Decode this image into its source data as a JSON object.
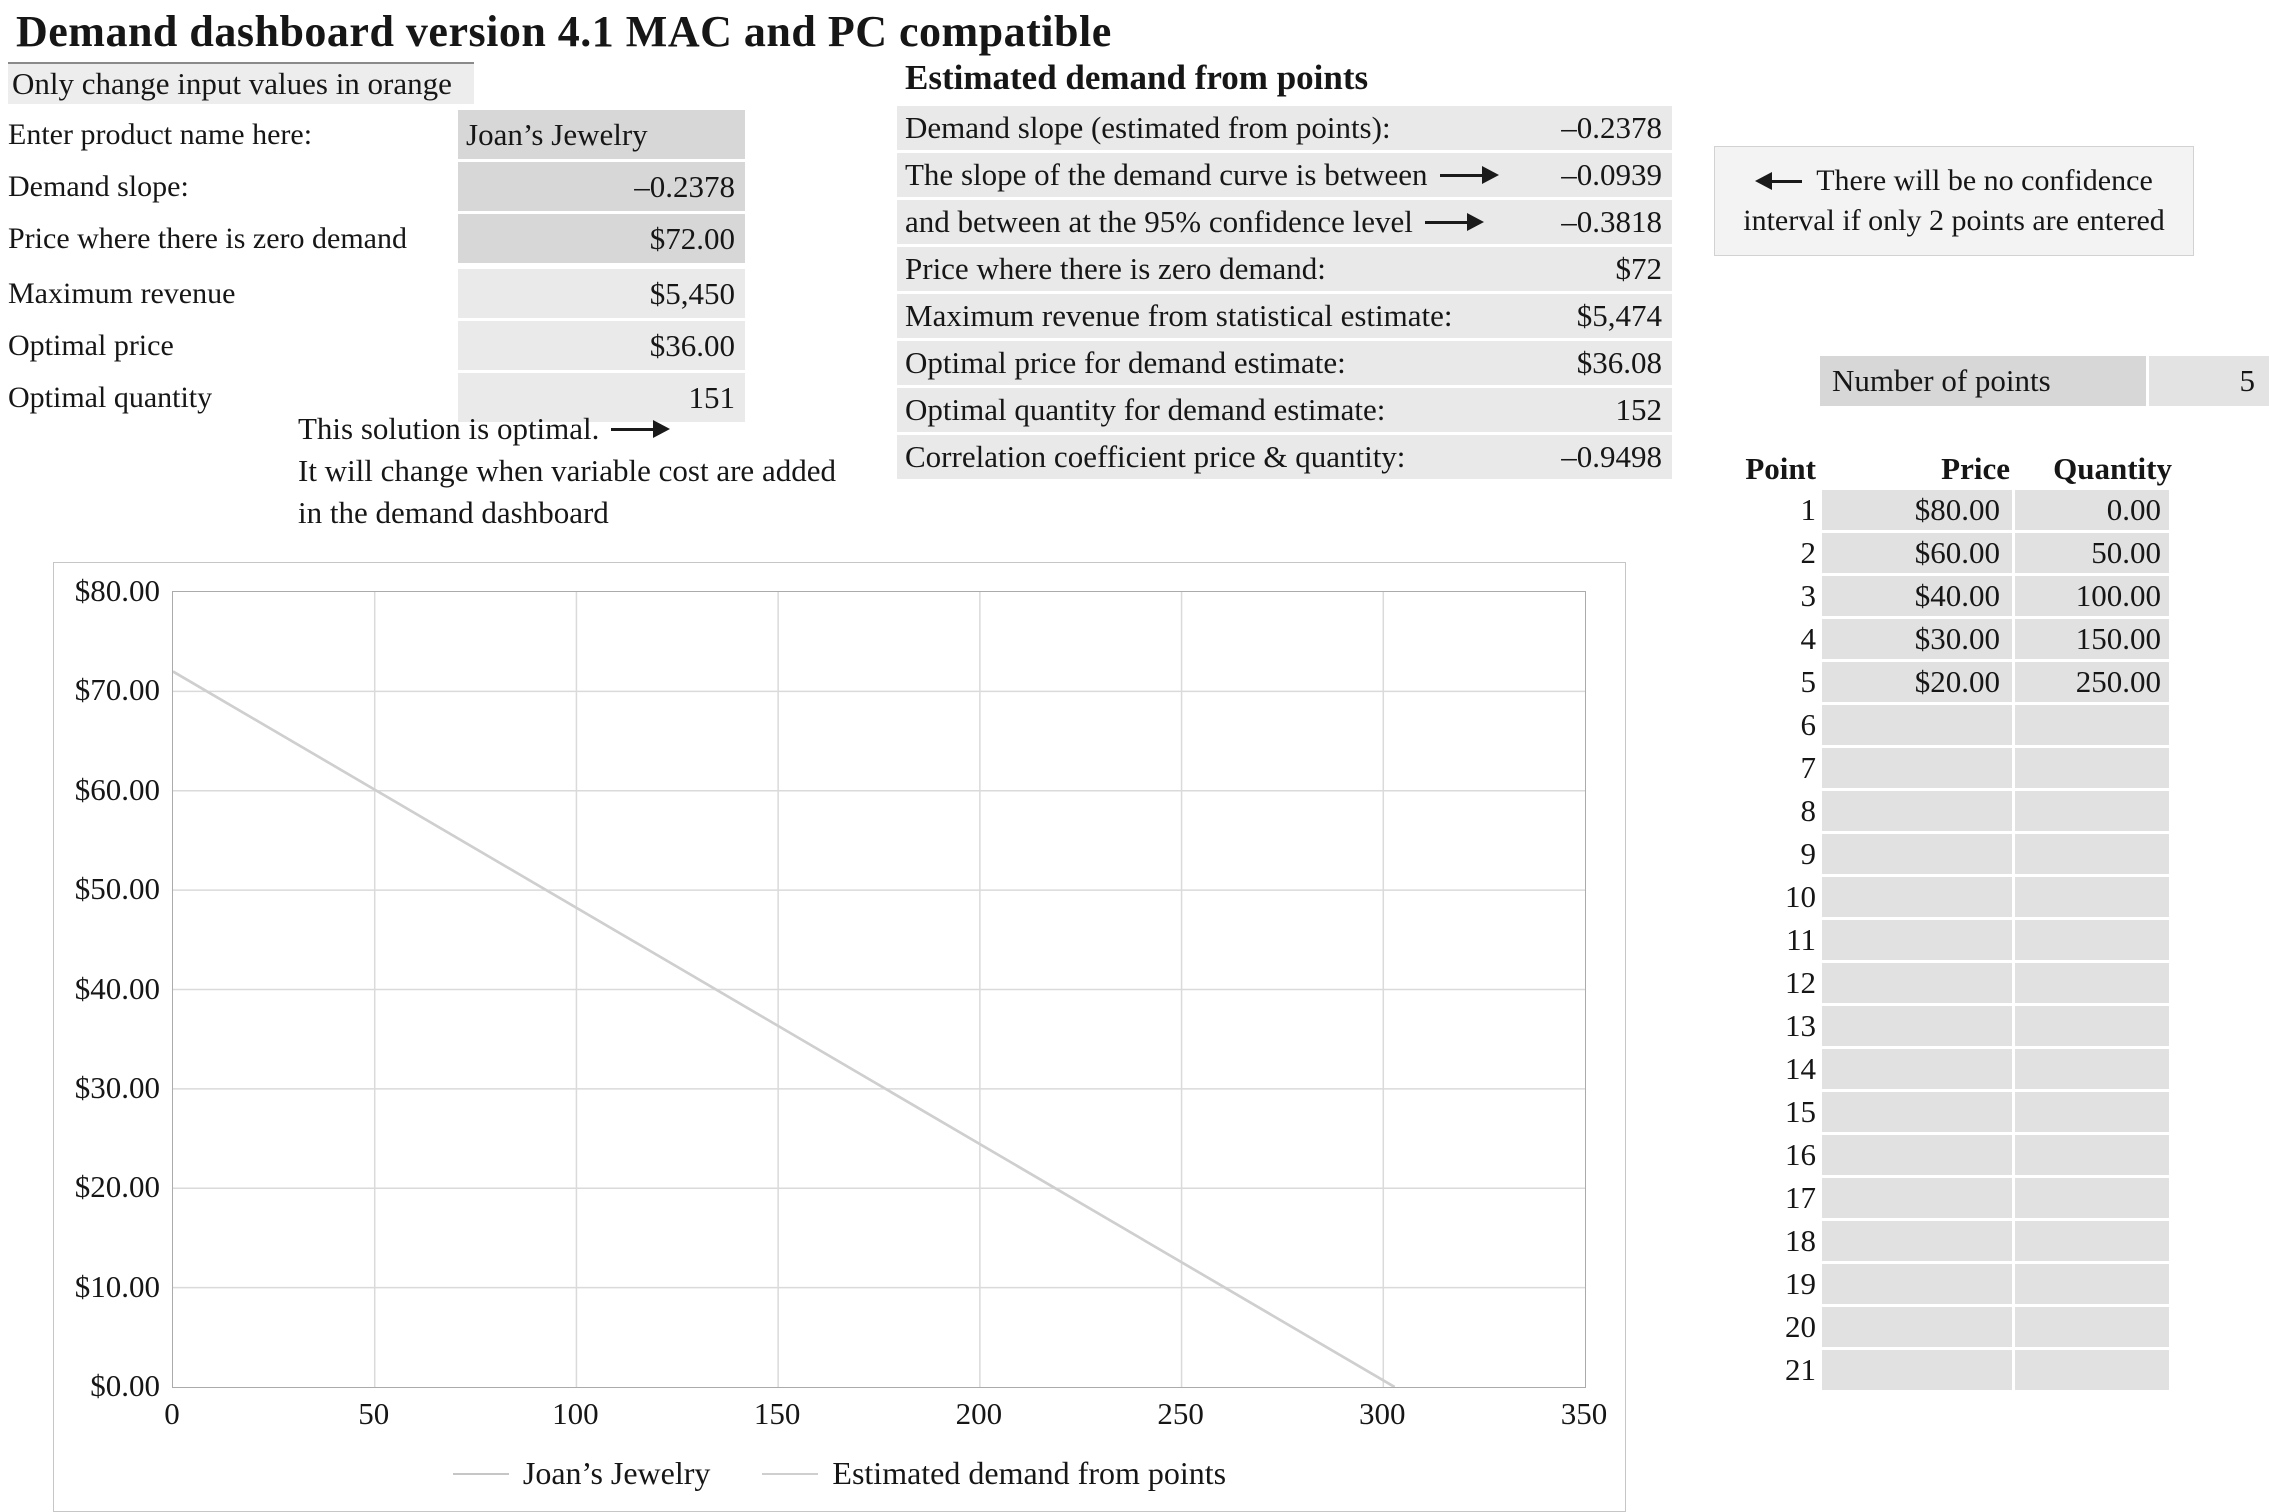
{
  "title": "Demand dashboard version 4.1 MAC and PC compatible",
  "inputs": {
    "note": "Only change input values in orange",
    "rows": [
      {
        "label": "Enter product name here:",
        "value": "Joan’s Jewelry",
        "align": "left",
        "editable": true
      },
      {
        "label": "Demand slope:",
        "value": "–0.2378",
        "align": "right",
        "editable": true
      },
      {
        "label": "Price where there is zero demand",
        "value": "$72.00",
        "align": "right",
        "editable": true
      },
      {
        "label": "Maximum revenue",
        "value": "$5,450",
        "align": "right",
        "editable": false
      },
      {
        "label": "Optimal price",
        "value": "$36.00",
        "align": "right",
        "editable": false
      },
      {
        "label": "Optimal quantity",
        "value": "151",
        "align": "right",
        "editable": false
      }
    ],
    "optimal_note_line1": "This solution is optimal.",
    "optimal_note_line2": "It will change when variable cost are added",
    "optimal_note_line3": "in the demand dashboard"
  },
  "estimates": {
    "header": "Estimated demand from points",
    "rows": [
      {
        "label": "Demand slope (estimated from points):",
        "value": "–0.2378",
        "arrow": false
      },
      {
        "label": "The slope of the demand curve is between",
        "value": "–0.0939",
        "arrow": true
      },
      {
        "label": "and between at the 95% confidence level",
        "value": "–0.3818",
        "arrow": true
      },
      {
        "label": "Price where there is zero demand:",
        "value": "$72",
        "arrow": false
      },
      {
        "label": "Maximum revenue from statistical estimate:",
        "value": "$5,474",
        "arrow": false
      },
      {
        "label": "Optimal price for demand estimate:",
        "value": "$36.08",
        "arrow": false
      },
      {
        "label": "Optimal quantity for demand estimate:",
        "value": "152",
        "arrow": false
      },
      {
        "label": "Correlation coefficient price & quantity:",
        "value": "–0.9498",
        "arrow": false
      }
    ]
  },
  "confidence_note": {
    "line1": "There will be no confidence",
    "line2": "interval if only 2 points are entered"
  },
  "points_panel": {
    "count_label": "Number of points",
    "count_value": "5",
    "headers": [
      "Point",
      "Price",
      "Quantity"
    ],
    "rows": [
      {
        "point": "1",
        "price": "$80.00",
        "quantity": "0.00"
      },
      {
        "point": "2",
        "price": "$60.00",
        "quantity": "50.00"
      },
      {
        "point": "3",
        "price": "$40.00",
        "quantity": "100.00"
      },
      {
        "point": "4",
        "price": "$30.00",
        "quantity": "150.00"
      },
      {
        "point": "5",
        "price": "$20.00",
        "quantity": "250.00"
      },
      {
        "point": "6",
        "price": "",
        "quantity": ""
      },
      {
        "point": "7",
        "price": "",
        "quantity": ""
      },
      {
        "point": "8",
        "price": "",
        "quantity": ""
      },
      {
        "point": "9",
        "price": "",
        "quantity": ""
      },
      {
        "point": "10",
        "price": "",
        "quantity": ""
      },
      {
        "point": "11",
        "price": "",
        "quantity": ""
      },
      {
        "point": "12",
        "price": "",
        "quantity": ""
      },
      {
        "point": "13",
        "price": "",
        "quantity": ""
      },
      {
        "point": "14",
        "price": "",
        "quantity": ""
      },
      {
        "point": "15",
        "price": "",
        "quantity": ""
      },
      {
        "point": "16",
        "price": "",
        "quantity": ""
      },
      {
        "point": "17",
        "price": "",
        "quantity": ""
      },
      {
        "point": "18",
        "price": "",
        "quantity": ""
      },
      {
        "point": "19",
        "price": "",
        "quantity": ""
      },
      {
        "point": "20",
        "price": "",
        "quantity": ""
      },
      {
        "point": "21",
        "price": "",
        "quantity": ""
      }
    ]
  },
  "chart_data": {
    "type": "line",
    "title": "",
    "xlabel": "",
    "ylabel": "",
    "xlim": [
      0,
      350
    ],
    "ylim": [
      0,
      80
    ],
    "x_tick_labels": [
      "0",
      "50",
      "100",
      "150",
      "200",
      "250",
      "300",
      "350"
    ],
    "y_tick_labels": [
      "$80.00",
      "$70.00",
      "$60.00",
      "$50.00",
      "$40.00",
      "$30.00",
      "$20.00",
      "$10.00",
      "$0.00"
    ],
    "grid": true,
    "legend_position": "bottom-center",
    "series": [
      {
        "name": "Joan’s Jewelry",
        "color": "#c6c6c6",
        "points": [
          [
            0,
            72
          ],
          [
            302.8,
            0
          ]
        ]
      },
      {
        "name": "Estimated demand from points",
        "color": "#cfcfcf",
        "points": [
          [
            0,
            72
          ],
          [
            302.8,
            0
          ]
        ]
      }
    ]
  },
  "colors": {
    "input_cell": "#d7d7d7",
    "output_cell": "#eaeaea",
    "table_cell": "#e1e1e1",
    "gridline": "#dadada",
    "text": "#161616"
  }
}
